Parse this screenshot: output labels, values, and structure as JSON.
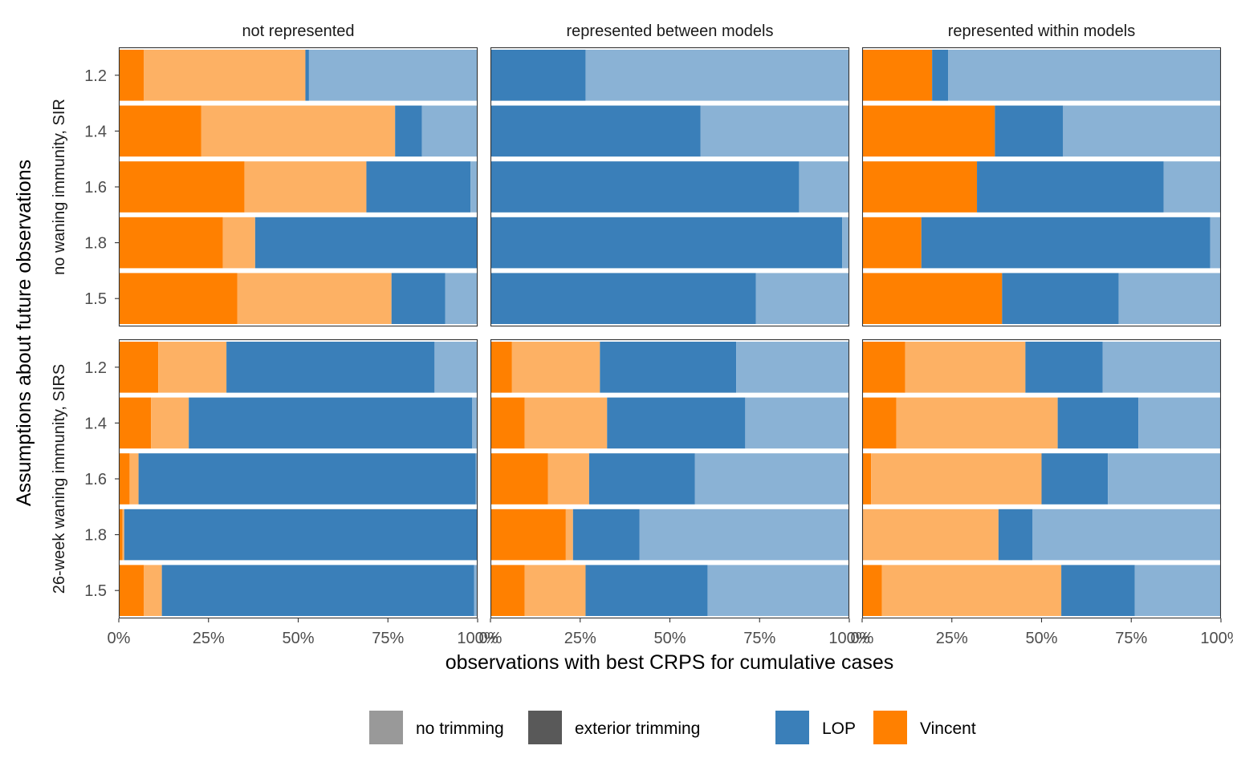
{
  "chart_data": {
    "type": "bar",
    "orientation": "horizontal",
    "stacked": true,
    "facet_columns": [
      "not represented",
      "represented between models",
      "represented within models"
    ],
    "facet_rows": [
      "no waning immunity, SIR",
      "26-week waning immunity, SIRS"
    ],
    "categories": [
      "1.2",
      "1.4",
      "1.6",
      "1.8",
      "1.5"
    ],
    "segment_order": [
      "Vincent exterior trimming",
      "Vincent no trimming",
      "LOP exterior trimming",
      "LOP no trimming"
    ],
    "xlabel": "observations with best CRPS for cumulative cases",
    "ylabel": "Assumptions about future observations",
    "xlim": [
      0,
      100
    ],
    "x_ticks": [
      "0%",
      "25%",
      "50%",
      "75%",
      "100%"
    ],
    "x_tick_values": [
      0,
      25,
      50,
      75,
      100
    ],
    "grid": false,
    "legend": {
      "position": "bottom",
      "trimming": [
        {
          "label": "no trimming",
          "color": "#999999"
        },
        {
          "label": "exterior trimming",
          "color": "#595959"
        }
      ],
      "method": [
        {
          "label": "LOP",
          "color": "#3A7FB9"
        },
        {
          "label": "Vincent",
          "color": "#FF8000"
        }
      ]
    },
    "colors": {
      "Vincent exterior trimming": "#FF8000",
      "Vincent no trimming": "#FDB164",
      "LOP exterior trimming": "#3A7FB9",
      "LOP no trimming": "#8AB2D5"
    },
    "panels": [
      {
        "col": 0,
        "row": 0,
        "values": [
          [
            7,
            45,
            1,
            47
          ],
          [
            23,
            54,
            7.5,
            15.5
          ],
          [
            35,
            34,
            29,
            2
          ],
          [
            29,
            9,
            62,
            0
          ],
          [
            33,
            43,
            15,
            9
          ]
        ]
      },
      {
        "col": 1,
        "row": 0,
        "values": [
          [
            0,
            0,
            26.5,
            73.5
          ],
          [
            0,
            0,
            58.5,
            41.5
          ],
          [
            0,
            0,
            86,
            14
          ],
          [
            0,
            0,
            98,
            2
          ],
          [
            0,
            0,
            74,
            26
          ]
        ]
      },
      {
        "col": 2,
        "row": 0,
        "values": [
          [
            19.5,
            0,
            4.5,
            76
          ],
          [
            37,
            0,
            19,
            44
          ],
          [
            32,
            0,
            52,
            16
          ],
          [
            16.5,
            0,
            80.5,
            3
          ],
          [
            39,
            0,
            32.5,
            28.5
          ]
        ]
      },
      {
        "col": 0,
        "row": 1,
        "values": [
          [
            11,
            19,
            58,
            12
          ],
          [
            9,
            10.5,
            79,
            1.5
          ],
          [
            3,
            2.5,
            94,
            0.5
          ],
          [
            1,
            0.5,
            98.5,
            0
          ],
          [
            7,
            5,
            87,
            1
          ]
        ]
      },
      {
        "col": 1,
        "row": 1,
        "values": [
          [
            6,
            24.5,
            38,
            31.5
          ],
          [
            9.5,
            23,
            38.5,
            29
          ],
          [
            16,
            11.5,
            29.5,
            43
          ],
          [
            21,
            2,
            18.5,
            58.5
          ],
          [
            9.5,
            17,
            34,
            39.5
          ]
        ]
      },
      {
        "col": 2,
        "row": 1,
        "values": [
          [
            12,
            33.5,
            21.5,
            33
          ],
          [
            9.5,
            45,
            22.5,
            23
          ],
          [
            2.5,
            47.5,
            18.5,
            31.5
          ],
          [
            0,
            38,
            9.5,
            52.5
          ],
          [
            5.5,
            50,
            20.5,
            24
          ]
        ]
      }
    ]
  }
}
